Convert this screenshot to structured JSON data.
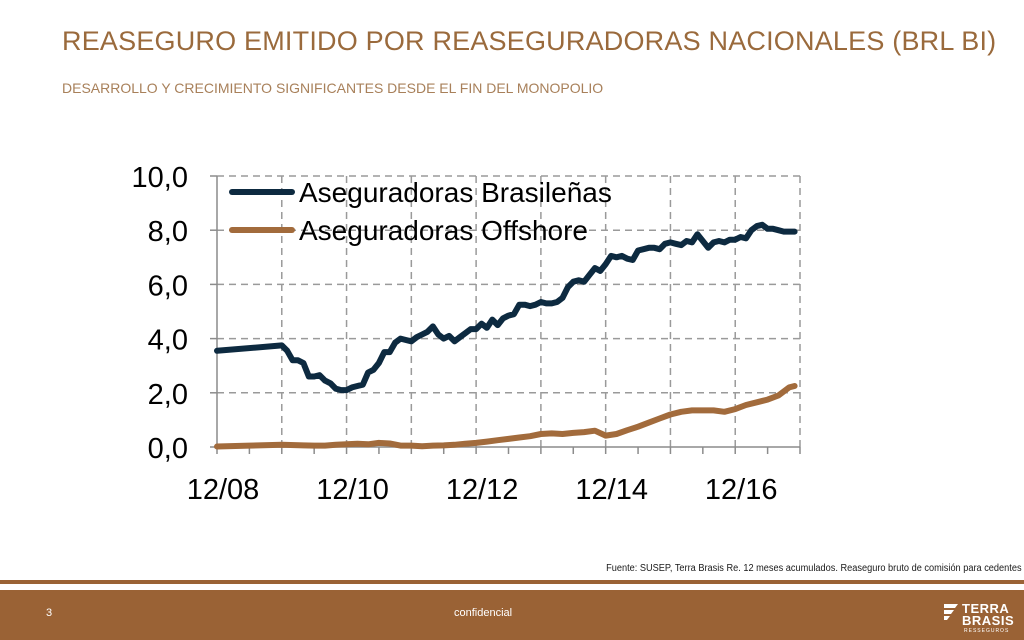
{
  "slide": {
    "title": "REASEGURO EMITIDO POR REASEGURADORAS NACIONALES (BRL BI)",
    "subtitle": "DESARROLLO Y CRECIMIENTO SIGNIFICANTES DESDE EL FIN DEL MONOPOLIO",
    "source": "Fuente: SUSEP, Terra Brasis Re. 12 meses acumulados. Reaseguro bruto de comisión para cedentes"
  },
  "footer": {
    "page_number": "3",
    "confidential": "confidencial",
    "logo_line1": "TERRA",
    "logo_line2": "BRASIS",
    "logo_line3": "RESSEGUROS"
  },
  "colors": {
    "title": "#9a6a3c",
    "series_1": "#0d2a40",
    "series_2": "#a26b3c",
    "footer": "#9a6235"
  },
  "chart_data": {
    "type": "line",
    "title": "",
    "xlabel": "",
    "ylabel": "",
    "ylim": [
      0,
      10
    ],
    "yticks": [
      "0,0",
      "2,0",
      "4,0",
      "6,0",
      "8,0",
      "10,0"
    ],
    "ytick_values": [
      0,
      2,
      4,
      6,
      8,
      10
    ],
    "xlim": [
      0,
      108
    ],
    "xticks": [
      "12/08",
      "12/10",
      "12/12",
      "12/14",
      "12/16"
    ],
    "xtick_values": [
      0,
      24,
      48,
      72,
      96
    ],
    "grid": true,
    "legend_position": "top-left",
    "series": [
      {
        "name": "Aseguradoras Brasileñas",
        "color": "#0d2a40",
        "x": [
          0,
          12,
          13,
          14,
          15,
          16,
          17,
          18,
          19,
          20,
          21,
          22,
          23,
          24,
          25,
          26,
          27,
          28,
          29,
          30,
          31,
          32,
          33,
          34,
          35,
          36,
          37,
          38,
          39,
          40,
          41,
          42,
          43,
          44,
          45,
          46,
          47,
          48,
          49,
          50,
          51,
          52,
          53,
          54,
          55,
          56,
          57,
          58,
          59,
          60,
          61,
          62,
          63,
          64,
          65,
          66,
          67,
          68,
          69,
          70,
          71,
          72,
          73,
          74,
          75,
          76,
          77,
          78,
          79,
          80,
          81,
          82,
          83,
          84,
          85,
          86,
          87,
          88,
          89,
          90,
          91,
          92,
          93,
          94,
          95,
          96,
          97,
          98,
          99,
          100,
          101,
          102,
          103,
          104,
          105,
          106,
          107
        ],
        "values": [
          3.55,
          3.75,
          3.55,
          3.2,
          3.2,
          3.1,
          2.6,
          2.6,
          2.65,
          2.45,
          2.35,
          2.15,
          2.1,
          2.1,
          2.2,
          2.25,
          2.3,
          2.75,
          2.85,
          3.1,
          3.5,
          3.5,
          3.85,
          4.0,
          3.95,
          3.9,
          4.05,
          4.15,
          4.25,
          4.45,
          4.15,
          4.0,
          4.1,
          3.9,
          4.05,
          4.2,
          4.35,
          4.35,
          4.55,
          4.4,
          4.7,
          4.5,
          4.75,
          4.85,
          4.9,
          5.25,
          5.25,
          5.2,
          5.25,
          5.35,
          5.3,
          5.3,
          5.35,
          5.5,
          5.9,
          6.1,
          6.15,
          6.1,
          6.35,
          6.6,
          6.5,
          6.75,
          7.05,
          7.0,
          7.05,
          6.95,
          6.9,
          7.25,
          7.3,
          7.35,
          7.35,
          7.3,
          7.5,
          7.55,
          7.5,
          7.45,
          7.6,
          7.55,
          7.85,
          7.6,
          7.35,
          7.55,
          7.6,
          7.55,
          7.65,
          7.65,
          7.75,
          7.7,
          8.0,
          8.15,
          8.2,
          8.05,
          8.05,
          8.0,
          7.95,
          7.95,
          7.95
        ]
      },
      {
        "name": "Aseguradoras Offshore",
        "color": "#a26b3c",
        "x": [
          0,
          6,
          12,
          16,
          18,
          20,
          22,
          24,
          26,
          28,
          30,
          32,
          34,
          36,
          38,
          40,
          42,
          44,
          46,
          48,
          50,
          52,
          54,
          56,
          58,
          60,
          62,
          64,
          66,
          68,
          70,
          72,
          74,
          76,
          78,
          80,
          82,
          84,
          86,
          88,
          90,
          92,
          94,
          96,
          98,
          100,
          102,
          104,
          106,
          107
        ],
        "values": [
          0.02,
          0.05,
          0.08,
          0.06,
          0.05,
          0.05,
          0.08,
          0.1,
          0.12,
          0.1,
          0.15,
          0.13,
          0.05,
          0.05,
          0.03,
          0.05,
          0.06,
          0.08,
          0.12,
          0.15,
          0.2,
          0.25,
          0.3,
          0.35,
          0.4,
          0.48,
          0.5,
          0.48,
          0.52,
          0.55,
          0.6,
          0.42,
          0.48,
          0.62,
          0.75,
          0.9,
          1.05,
          1.2,
          1.3,
          1.35,
          1.35,
          1.35,
          1.3,
          1.4,
          1.55,
          1.65,
          1.75,
          1.9,
          2.2,
          2.25
        ]
      }
    ]
  }
}
